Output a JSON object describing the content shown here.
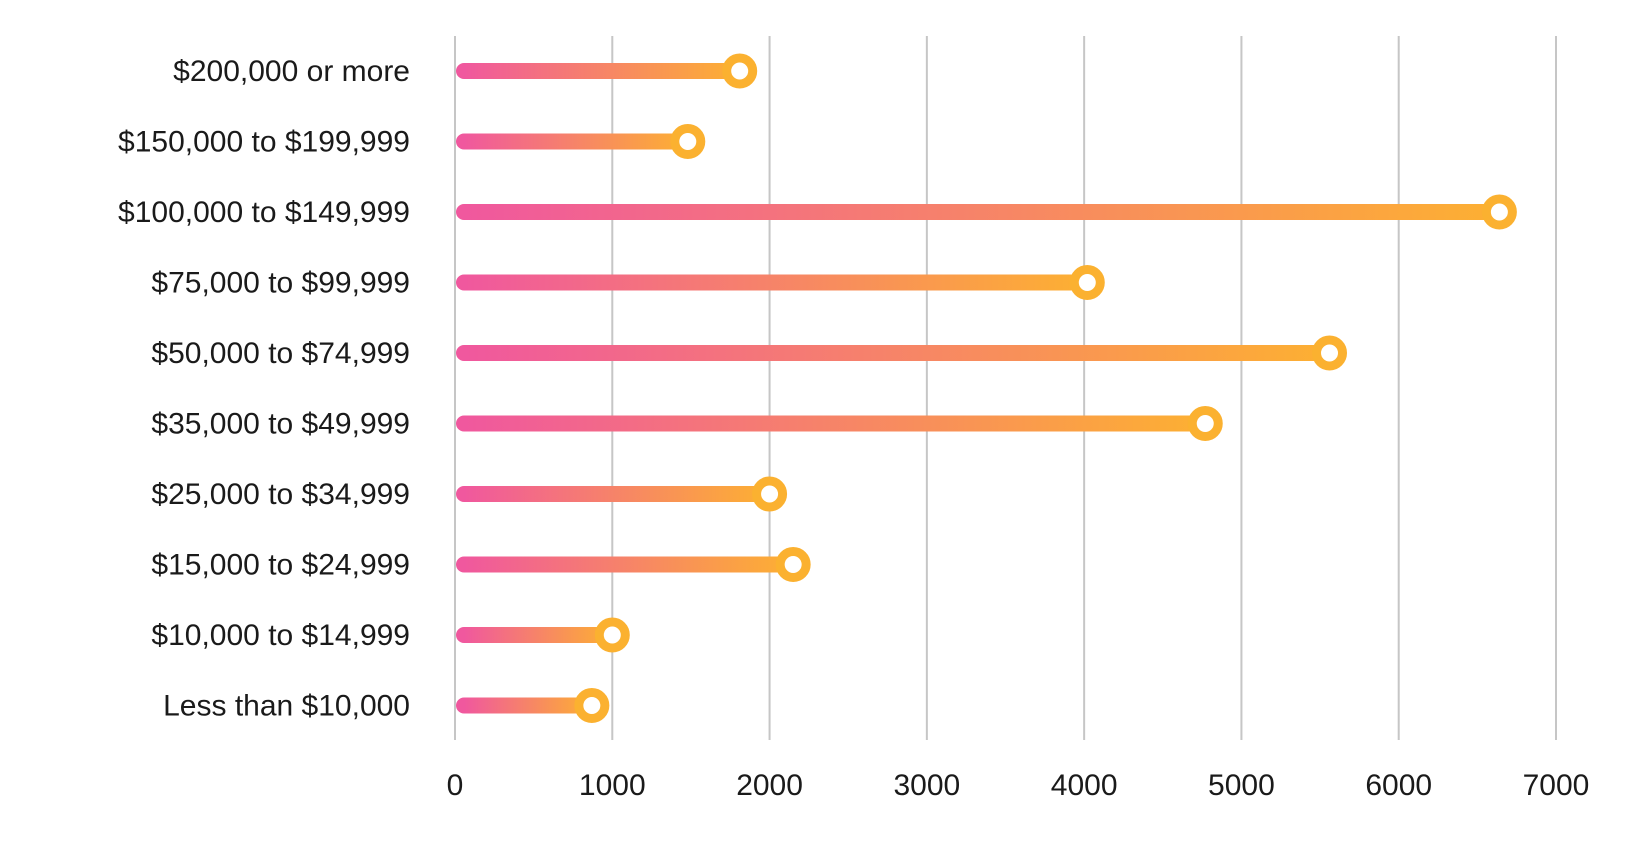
{
  "chart_data": {
    "type": "bar",
    "orientation": "horizontal",
    "categories": [
      "$200,000 or more",
      "$150,000 to $199,999",
      "$100,000 to $149,999",
      "$75,000 to $99,999",
      "$50,000 to $74,999",
      "$35,000 to $49,999",
      "$25,000 to $34,999",
      "$15,000 to $24,999",
      "$10,000 to $14,999",
      "Less than $10,000"
    ],
    "values": [
      1810,
      1480,
      6640,
      4020,
      5560,
      4770,
      2000,
      2150,
      1000,
      870
    ],
    "xlim": [
      0,
      7000
    ],
    "xticks": [
      0,
      1000,
      2000,
      3000,
      4000,
      5000,
      6000,
      7000
    ],
    "grid": true,
    "legend": "none",
    "colors": {
      "gradient_start": "#f0589e",
      "gradient_end": "#fdb032",
      "marker": "#fbb130",
      "grid": "#c6c6c6"
    }
  }
}
